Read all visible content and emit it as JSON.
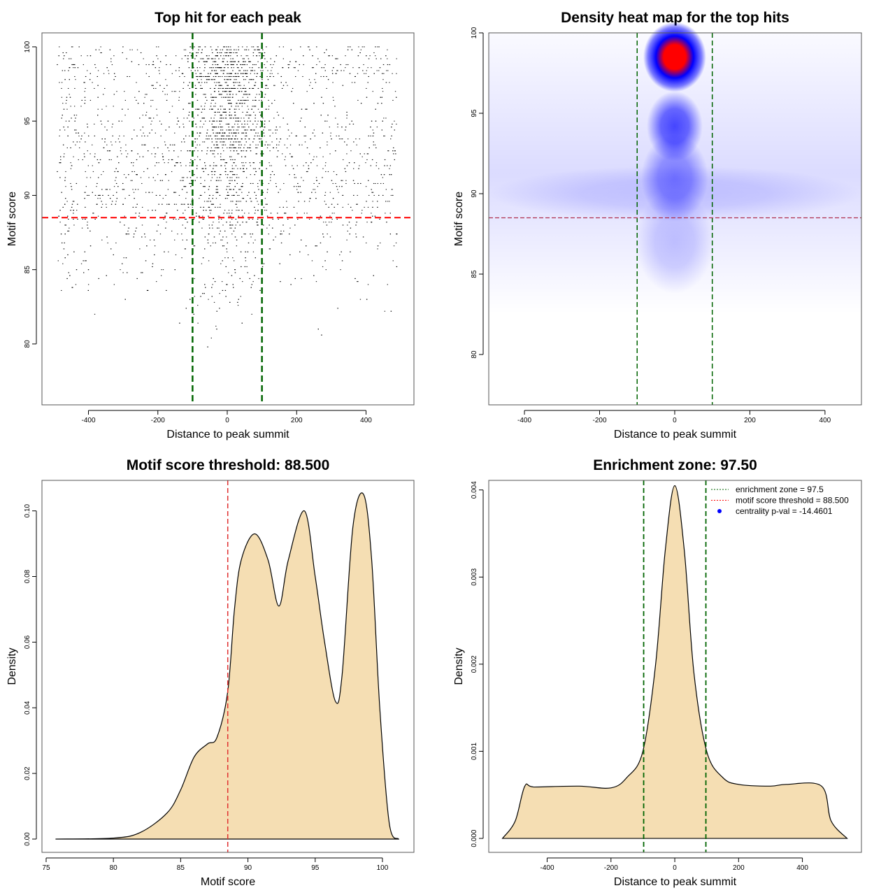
{
  "chart_data": [
    {
      "type": "scatter",
      "title": "Top hit for each peak",
      "xlabel": "Distance to peak summit",
      "ylabel": "Motif score",
      "xlim": [
        -534,
        538
      ],
      "ylim": [
        75.9,
        100.94
      ],
      "xticks": [
        -400,
        -200,
        0,
        200,
        400
      ],
      "yticks": [
        80,
        85,
        90,
        95,
        100
      ],
      "vlines": [
        -100,
        100
      ],
      "vline_color": "#006400",
      "hline": 88.5,
      "hline_color": "#ff0000",
      "point_color": "#000000"
    },
    {
      "type": "heatmap",
      "title": "Density heat map for the top hits",
      "xlabel": "Distance to peak summit",
      "ylabel": "Motif score",
      "xlim": [
        -495,
        497
      ],
      "ylim": [
        76.87,
        100
      ],
      "xticks": [
        -400,
        -200,
        0,
        200,
        400
      ],
      "yticks": [
        80,
        85,
        90,
        95,
        100
      ],
      "vlines": [
        -100,
        100
      ],
      "vline_color": "#006400",
      "hline": 88.5,
      "hline_color": "#b03050",
      "hotspots": [
        {
          "x": 0,
          "y": 98.5,
          "level": 1.0
        },
        {
          "x": 0,
          "y": 94.2,
          "level": 0.7
        },
        {
          "x": 0,
          "y": 91,
          "level": 0.45
        },
        {
          "x": 0,
          "y": 87,
          "level": 0.2
        }
      ],
      "colors": {
        "low": "#ffffff",
        "mid": "#0000ff",
        "high": "#ff0000"
      }
    },
    {
      "type": "area",
      "title": "Motif score threshold: 88.500",
      "xlabel": "Motif score",
      "ylabel": "Density",
      "xlim": [
        74.69,
        102.34
      ],
      "ylim": [
        -0.00405,
        0.1093
      ],
      "xticks": [
        75,
        80,
        85,
        90,
        95,
        100
      ],
      "yticks": [
        0,
        0.02,
        0.04,
        0.06,
        0.08,
        0.1
      ],
      "ytick_labels": [
        "0.00",
        "0.02",
        "0.04",
        "0.06",
        "0.08",
        "0.10"
      ],
      "vline": 88.5,
      "vline_color": "#e03030",
      "fill": "#f5deb3",
      "x": [
        75.7,
        80,
        82,
        84,
        85,
        86,
        87,
        87.7,
        88.5,
        89,
        89.5,
        90.5,
        91.5,
        92.3,
        93,
        94.2,
        95,
        95.7,
        96.5,
        97,
        97.8,
        98.6,
        99.2,
        99.8,
        100.5,
        101.2
      ],
      "y": [
        0,
        0.0003,
        0.002,
        0.008,
        0.015,
        0.025,
        0.029,
        0.031,
        0.045,
        0.07,
        0.085,
        0.093,
        0.085,
        0.071,
        0.085,
        0.1,
        0.08,
        0.06,
        0.042,
        0.05,
        0.095,
        0.105,
        0.085,
        0.04,
        0.005,
        0
      ]
    },
    {
      "type": "area",
      "title": "Enrichment zone: 97.50",
      "xlabel": "Distance to peak summit",
      "ylabel": "Density",
      "xlim": [
        -583,
        585
      ],
      "ylim": [
        -0.00016,
        0.00411
      ],
      "xticks": [
        -400,
        -200,
        0,
        200,
        400
      ],
      "yticks": [
        0,
        0.001,
        0.002,
        0.003,
        0.004
      ],
      "ytick_labels": [
        "0.000",
        "0.001",
        "0.002",
        "0.003",
        "0.004"
      ],
      "vlines": [
        -97.5,
        97.5
      ],
      "vline_color": "#006400",
      "fill": "#f5deb3",
      "x": [
        -540,
        -500,
        -470,
        -440,
        -300,
        -200,
        -150,
        -100,
        -60,
        -30,
        0,
        30,
        60,
        100,
        150,
        200,
        300,
        350,
        460,
        490,
        540
      ],
      "y": [
        0,
        0.0002,
        0.0006,
        0.00059,
        0.0006,
        0.00058,
        0.0007,
        0.001,
        0.002,
        0.0033,
        0.00405,
        0.0033,
        0.0019,
        0.001,
        0.0007,
        0.00062,
        0.0006,
        0.00062,
        0.0006,
        0.0002,
        0
      ],
      "legend": {
        "position": "top-right",
        "entries": [
          {
            "label": "enrichment zone = 97.5",
            "color": "#006400",
            "style": "dotted"
          },
          {
            "label": "motif score threshold = 88.500",
            "color": "#ff0000",
            "style": "dotted"
          },
          {
            "label": "centrality p-val = -14.4601",
            "color": "#0000ff",
            "style": "point"
          }
        ]
      }
    }
  ]
}
